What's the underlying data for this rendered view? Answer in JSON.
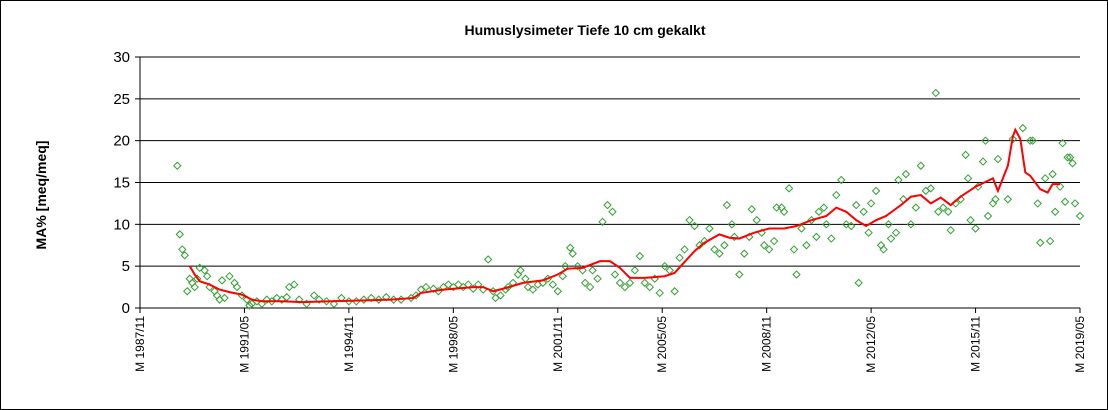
{
  "chart_data": {
    "type": "scatter",
    "title": "Humuslysimeter Tiefe  10 cm   gekalkt",
    "y_label": "MA% [meq/meq]",
    "xlim": [
      "1987/11",
      "2019/05"
    ],
    "xticks": [
      {
        "value": "1987/11",
        "label": "M 1987/11"
      },
      {
        "value": "1991/05",
        "label": "M 1991/05"
      },
      {
        "value": "1994/11",
        "label": "M 1994/11"
      },
      {
        "value": "1998/05",
        "label": "M 1998/05"
      },
      {
        "value": "2001/11",
        "label": "M 2001/11"
      },
      {
        "value": "2005/05",
        "label": "M 2005/05"
      },
      {
        "value": "2008/11",
        "label": "M 2008/11"
      },
      {
        "value": "2012/05",
        "label": "M 2012/05"
      },
      {
        "value": "2015/11",
        "label": "M 2015/11"
      },
      {
        "value": "2019/05",
        "label": "M 2019/05"
      }
    ],
    "ylim": [
      0,
      30
    ],
    "yticks": [
      0,
      5,
      10,
      15,
      20,
      25,
      30
    ],
    "grid": true,
    "series": [
      {
        "type": "scatter",
        "marker": "diamond",
        "color": "#33a033",
        "x": [
          "1989/02",
          "1989/03",
          "1989/04",
          "1989/05",
          "1989/06",
          "1989/07",
          "1989/08",
          "1989/09",
          "1989/10",
          "1989/11",
          "1990/01",
          "1990/02",
          "1990/03",
          "1990/05",
          "1990/06",
          "1990/07",
          "1990/08",
          "1990/09",
          "1990/11",
          "1991/01",
          "1991/02",
          "1991/04",
          "1991/06",
          "1991/07",
          "1991/08",
          "1991/10",
          "1991/12",
          "1992/02",
          "1992/04",
          "1992/06",
          "1992/08",
          "1992/10",
          "1992/11",
          "1993/01",
          "1993/03",
          "1993/06",
          "1993/09",
          "1993/11",
          "1994/02",
          "1994/05",
          "1994/08",
          "1994/11",
          "1995/02",
          "1995/05",
          "1995/08",
          "1995/11",
          "1996/02",
          "1996/05",
          "1996/08",
          "1996/12",
          "1997/02",
          "1997/04",
          "1997/06",
          "1997/09",
          "1997/11",
          "1998/01",
          "1998/03",
          "1998/05",
          "1998/07",
          "1998/09",
          "1998/11",
          "1999/01",
          "1999/03",
          "1999/05",
          "1999/07",
          "1999/09",
          "1999/10",
          "1999/12",
          "2000/02",
          "2000/03",
          "2000/05",
          "2000/07",
          "2000/08",
          "2000/10",
          "2000/11",
          "2001/01",
          "2001/03",
          "2001/05",
          "2001/07",
          "2001/09",
          "2001/11",
          "2002/01",
          "2002/02",
          "2002/04",
          "2002/05",
          "2002/07",
          "2002/09",
          "2002/10",
          "2002/12",
          "2003/01",
          "2003/03",
          "2003/05",
          "2003/07",
          "2003/09",
          "2003/10",
          "2003/12",
          "2004/02",
          "2004/04",
          "2004/06",
          "2004/08",
          "2004/10",
          "2004/12",
          "2005/02",
          "2005/04",
          "2005/06",
          "2005/08",
          "2005/10",
          "2005/12",
          "2006/02",
          "2006/04",
          "2006/06",
          "2006/08",
          "2006/10",
          "2006/12",
          "2007/02",
          "2007/04",
          "2007/06",
          "2007/07",
          "2007/09",
          "2007/10",
          "2007/12",
          "2008/02",
          "2008/04",
          "2008/05",
          "2008/07",
          "2008/09",
          "2008/10",
          "2008/12",
          "2009/02",
          "2009/03",
          "2009/05",
          "2009/06",
          "2009/08",
          "2009/10",
          "2009/11",
          "2010/01",
          "2010/03",
          "2010/05",
          "2010/07",
          "2010/08",
          "2010/10",
          "2010/11",
          "2011/01",
          "2011/03",
          "2011/05",
          "2011/07",
          "2011/09",
          "2011/11",
          "2011/12",
          "2012/02",
          "2012/04",
          "2012/05",
          "2012/07",
          "2012/09",
          "2012/10",
          "2012/12",
          "2013/01",
          "2013/03",
          "2013/04",
          "2013/06",
          "2013/07",
          "2013/09",
          "2013/11",
          "2014/01",
          "2014/03",
          "2014/05",
          "2014/07",
          "2014/08",
          "2014/10",
          "2014/12",
          "2015/01",
          "2015/03",
          "2015/05",
          "2015/07",
          "2015/08",
          "2015/09",
          "2015/11",
          "2015/12",
          "2016/02",
          "2016/03",
          "2016/04",
          "2016/06",
          "2016/07",
          "2016/08",
          "2016/12",
          "2017/02",
          "2017/06",
          "2017/09",
          "2017/10",
          "2017/12",
          "2018/01",
          "2018/03",
          "2018/05",
          "2018/06",
          "2018/07",
          "2018/09",
          "2018/10",
          "2018/11",
          "2018/12",
          "2019/01",
          "2019/02",
          "2019/03",
          "2019/05"
        ],
        "values": [
          17,
          8.8,
          7,
          6.3,
          2,
          3.5,
          3,
          2.5,
          3.5,
          4.8,
          4.5,
          3.8,
          2.5,
          2,
          1.5,
          1,
          3.3,
          1.2,
          3.8,
          3,
          2.5,
          1.5,
          1,
          0.3,
          0.5,
          0.8,
          0.5,
          1,
          0.8,
          1.2,
          1,
          1.3,
          2.5,
          2.8,
          1,
          0.5,
          1.5,
          1,
          0.8,
          0.5,
          1.2,
          0.8,
          0.8,
          1,
          1.2,
          1,
          1.3,
          1,
          1,
          1.2,
          1.5,
          2.2,
          2.5,
          2.3,
          2,
          2.5,
          2.8,
          2.5,
          2.8,
          2.5,
          2.8,
          2.3,
          2.8,
          2.2,
          5.8,
          2,
          1.2,
          1.5,
          2.2,
          2.5,
          3,
          4,
          4.5,
          3.5,
          2.5,
          2.2,
          2.8,
          3,
          3.5,
          2.8,
          2,
          3.8,
          5,
          7.2,
          6.5,
          5,
          4.5,
          3,
          2.5,
          4.5,
          3.5,
          10.3,
          12.3,
          11.5,
          4,
          3,
          2.5,
          3,
          4.5,
          6.2,
          3,
          2.5,
          3.5,
          1.8,
          5,
          4.5,
          2,
          6,
          7,
          10.5,
          9.8,
          7.5,
          8,
          9.5,
          7,
          6.5,
          7.5,
          12.3,
          10,
          8.5,
          4,
          6.5,
          8.5,
          11.8,
          10.5,
          9,
          7.5,
          7,
          8,
          12,
          12,
          11.5,
          14.3,
          7,
          4,
          9.5,
          7.5,
          10.5,
          8.5,
          11.5,
          12,
          10,
          8.3,
          13.5,
          15.3,
          10,
          9.8,
          12.3,
          3,
          11.5,
          9,
          12.5,
          14,
          7.5,
          7,
          10,
          8.3,
          9,
          15.3,
          13,
          16,
          10,
          12,
          17,
          14,
          14.3,
          25.7,
          11.5,
          12,
          11.5,
          9.3,
          12.5,
          13,
          18.3,
          15.5,
          10.5,
          9.5,
          14.5,
          17.5,
          20,
          11,
          12.5,
          13,
          17.8,
          13,
          20.2,
          21.5,
          20,
          20,
          12.5,
          7.8,
          15.5,
          8,
          16,
          11.5,
          14.5,
          19.7,
          12.7,
          18,
          18,
          17.3,
          12.5,
          11
        ]
      },
      {
        "type": "line",
        "color": "#ff0000",
        "x": [
          "1989/07",
          "1989/09",
          "1989/11",
          "1990/03",
          "1990/07",
          "1990/11",
          "1991/04",
          "1991/08",
          "1991/12",
          "1992/08",
          "1993/04",
          "1994/04",
          "1995/04",
          "1996/04",
          "1997/01",
          "1997/04",
          "1998/01",
          "1999/01",
          "1999/05",
          "1999/09",
          "2000/01",
          "2000/09",
          "2001/05",
          "2001/11",
          "2002/03",
          "2002/09",
          "2003/04",
          "2003/08",
          "2003/12",
          "2004/04",
          "2004/10",
          "2005/06",
          "2005/10",
          "2006/02",
          "2006/06",
          "2006/10",
          "2007/04",
          "2007/08",
          "2007/12",
          "2008/06",
          "2008/12",
          "2009/06",
          "2009/11",
          "2010/05",
          "2010/11",
          "2011/03",
          "2011/07",
          "2011/11",
          "2012/03",
          "2012/07",
          "2012/11",
          "2013/05",
          "2013/09",
          "2014/01",
          "2014/05",
          "2014/09",
          "2015/01",
          "2015/05",
          "2015/11",
          "2016/06",
          "2016/08",
          "2016/12",
          "2017/02",
          "2017/03",
          "2017/05",
          "2017/07",
          "2017/09",
          "2018/01",
          "2018/04",
          "2018/06",
          "2018/09"
        ],
        "values": [
          5,
          4,
          3.2,
          2.8,
          2.2,
          1.9,
          1.6,
          1,
          0.8,
          0.8,
          0.7,
          0.8,
          0.9,
          1,
          1.2,
          1.8,
          2.2,
          2.5,
          2.5,
          2,
          2.3,
          3,
          3.3,
          4,
          4.7,
          4.8,
          5.6,
          5.6,
          4.8,
          3.6,
          3.6,
          3.8,
          4.2,
          5.5,
          6.8,
          7.8,
          8.8,
          8.4,
          8.3,
          9,
          9.5,
          9.5,
          9.8,
          10.5,
          11,
          12,
          11.5,
          10.5,
          9.8,
          10.5,
          11,
          12.3,
          13.3,
          13.5,
          12.5,
          13.2,
          12.3,
          13.3,
          14.5,
          15.5,
          14,
          17,
          20.5,
          21.3,
          20.2,
          16.2,
          15.8,
          14.2,
          13.8,
          14.8,
          14.8
        ]
      }
    ]
  }
}
